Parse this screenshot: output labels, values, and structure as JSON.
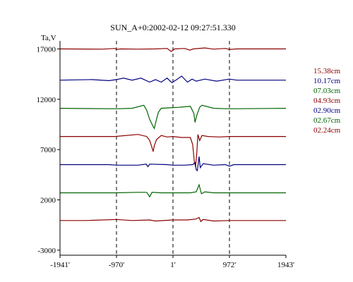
{
  "chart_data": {
    "type": "line",
    "title": "SUN_A+0:2002-02-12 09:27:51.330",
    "ylabel": "Ta,V",
    "xlim": [
      -1941,
      1943
    ],
    "ylim": [
      -3500,
      17800
    ],
    "x_ticks": [
      {
        "value": -1941,
        "label": "-1941'"
      },
      {
        "value": -970,
        "label": "-970'"
      },
      {
        "value": 1,
        "label": "1'"
      },
      {
        "value": 972,
        "label": "972'"
      },
      {
        "value": 1943,
        "label": "1943'"
      }
    ],
    "y_ticks": [
      {
        "value": 17000,
        "label": "17000"
      },
      {
        "value": 12000,
        "label": "12000"
      },
      {
        "value": 7000,
        "label": "7000"
      },
      {
        "value": 2000,
        "label": "2000"
      },
      {
        "value": -3000,
        "label": "-3000"
      }
    ],
    "vertical_guides": [
      -970,
      1,
      972
    ],
    "series": [
      {
        "name": "15.38cm",
        "color": "#8b0000",
        "points": [
          [
            -1941,
            17000
          ],
          [
            -1200,
            16980
          ],
          [
            -1000,
            17050
          ],
          [
            -970,
            16950
          ],
          [
            -900,
            17000
          ],
          [
            -600,
            16980
          ],
          [
            -300,
            17000
          ],
          [
            -100,
            17050
          ],
          [
            -30,
            16750
          ],
          [
            30,
            17000
          ],
          [
            200,
            17050
          ],
          [
            290,
            16880
          ],
          [
            350,
            17000
          ],
          [
            550,
            17100
          ],
          [
            700,
            16980
          ],
          [
            900,
            17050
          ],
          [
            972,
            16950
          ],
          [
            1100,
            17000
          ],
          [
            1943,
            17000
          ]
        ]
      },
      {
        "name": "10.17cm",
        "color": "#000080",
        "points": [
          [
            -1941,
            13900
          ],
          [
            -1400,
            13950
          ],
          [
            -1100,
            13850
          ],
          [
            -970,
            13950
          ],
          [
            -850,
            14100
          ],
          [
            -700,
            13900
          ],
          [
            -550,
            14100
          ],
          [
            -400,
            13700
          ],
          [
            -300,
            13950
          ],
          [
            -200,
            13700
          ],
          [
            -100,
            14100
          ],
          [
            -20,
            13650
          ],
          [
            50,
            13900
          ],
          [
            150,
            14300
          ],
          [
            250,
            13700
          ],
          [
            330,
            14000
          ],
          [
            400,
            13800
          ],
          [
            550,
            14000
          ],
          [
            750,
            13800
          ],
          [
            972,
            14000
          ],
          [
            1100,
            13900
          ],
          [
            1943,
            13900
          ]
        ]
      },
      {
        "name": "07.03cm",
        "color": "#006400",
        "points": [
          [
            -1941,
            11100
          ],
          [
            -970,
            11050
          ],
          [
            -700,
            11100
          ],
          [
            -500,
            11400
          ],
          [
            -450,
            10900
          ],
          [
            -400,
            10000
          ],
          [
            -350,
            9400
          ],
          [
            -320,
            9100
          ],
          [
            -300,
            9600
          ],
          [
            -250,
            10700
          ],
          [
            -200,
            11100
          ],
          [
            -50,
            11150
          ],
          [
            100,
            11200
          ],
          [
            300,
            11300
          ],
          [
            360,
            10600
          ],
          [
            380,
            9700
          ],
          [
            410,
            10400
          ],
          [
            460,
            11200
          ],
          [
            500,
            11400
          ],
          [
            700,
            11100
          ],
          [
            972,
            11050
          ],
          [
            1943,
            11100
          ]
        ]
      },
      {
        "name": "04.93cm",
        "color": "#8b0000",
        "points": [
          [
            -1941,
            8300
          ],
          [
            -1000,
            8300
          ],
          [
            -600,
            8500
          ],
          [
            -450,
            8300
          ],
          [
            -400,
            7900
          ],
          [
            -360,
            7200
          ],
          [
            -340,
            6800
          ],
          [
            -320,
            7400
          ],
          [
            -280,
            8000
          ],
          [
            -200,
            8400
          ],
          [
            -100,
            8250
          ],
          [
            0,
            8300
          ],
          [
            150,
            8200
          ],
          [
            300,
            8200
          ],
          [
            340,
            7500
          ],
          [
            370,
            5700
          ],
          [
            390,
            5300
          ],
          [
            410,
            6600
          ],
          [
            430,
            8500
          ],
          [
            460,
            7900
          ],
          [
            500,
            8400
          ],
          [
            600,
            8300
          ],
          [
            800,
            8250
          ],
          [
            972,
            8300
          ],
          [
            1943,
            8300
          ]
        ]
      },
      {
        "name": "02.90cm",
        "color": "#000080",
        "points": [
          [
            -1941,
            5500
          ],
          [
            -1100,
            5500
          ],
          [
            -970,
            5450
          ],
          [
            -600,
            5450
          ],
          [
            -460,
            5550
          ],
          [
            -430,
            5300
          ],
          [
            -400,
            5550
          ],
          [
            -100,
            5500
          ],
          [
            0,
            5450
          ],
          [
            200,
            5450
          ],
          [
            340,
            5500
          ],
          [
            380,
            5700
          ],
          [
            400,
            5000
          ],
          [
            420,
            4900
          ],
          [
            450,
            6300
          ],
          [
            470,
            5200
          ],
          [
            520,
            5600
          ],
          [
            700,
            5450
          ],
          [
            900,
            5500
          ],
          [
            972,
            5350
          ],
          [
            1050,
            5500
          ],
          [
            1943,
            5500
          ]
        ]
      },
      {
        "name": "02.67cm",
        "color": "#006400",
        "points": [
          [
            -1941,
            2700
          ],
          [
            -1000,
            2700
          ],
          [
            -600,
            2750
          ],
          [
            -450,
            2750
          ],
          [
            -400,
            2300
          ],
          [
            -360,
            2750
          ],
          [
            -200,
            2700
          ],
          [
            0,
            2700
          ],
          [
            300,
            2700
          ],
          [
            400,
            2800
          ],
          [
            450,
            3500
          ],
          [
            490,
            2600
          ],
          [
            550,
            2800
          ],
          [
            700,
            2700
          ],
          [
            1943,
            2700
          ]
        ]
      },
      {
        "name": "02.24cm",
        "color": "#8b0000",
        "points": [
          [
            -1941,
            -50
          ],
          [
            -1500,
            -50
          ],
          [
            -970,
            50
          ],
          [
            -700,
            -50
          ],
          [
            -400,
            0
          ],
          [
            -300,
            -100
          ],
          [
            0,
            0
          ],
          [
            250,
            0
          ],
          [
            400,
            100
          ],
          [
            450,
            250
          ],
          [
            480,
            -150
          ],
          [
            520,
            50
          ],
          [
            700,
            -100
          ],
          [
            972,
            -50
          ],
          [
            1943,
            -50
          ]
        ]
      }
    ]
  },
  "legend": {
    "items": [
      {
        "label": "15.38cm",
        "color": "#8b0000"
      },
      {
        "label": "10.17cm",
        "color": "#000080"
      },
      {
        "label": "07.03cm",
        "color": "#006400"
      },
      {
        "label": "04.93cm",
        "color": "#8b0000"
      },
      {
        "label": "02.90cm",
        "color": "#000080"
      },
      {
        "label": "02.67cm",
        "color": "#006400"
      },
      {
        "label": "02.24cm",
        "color": "#8b0000"
      }
    ]
  }
}
